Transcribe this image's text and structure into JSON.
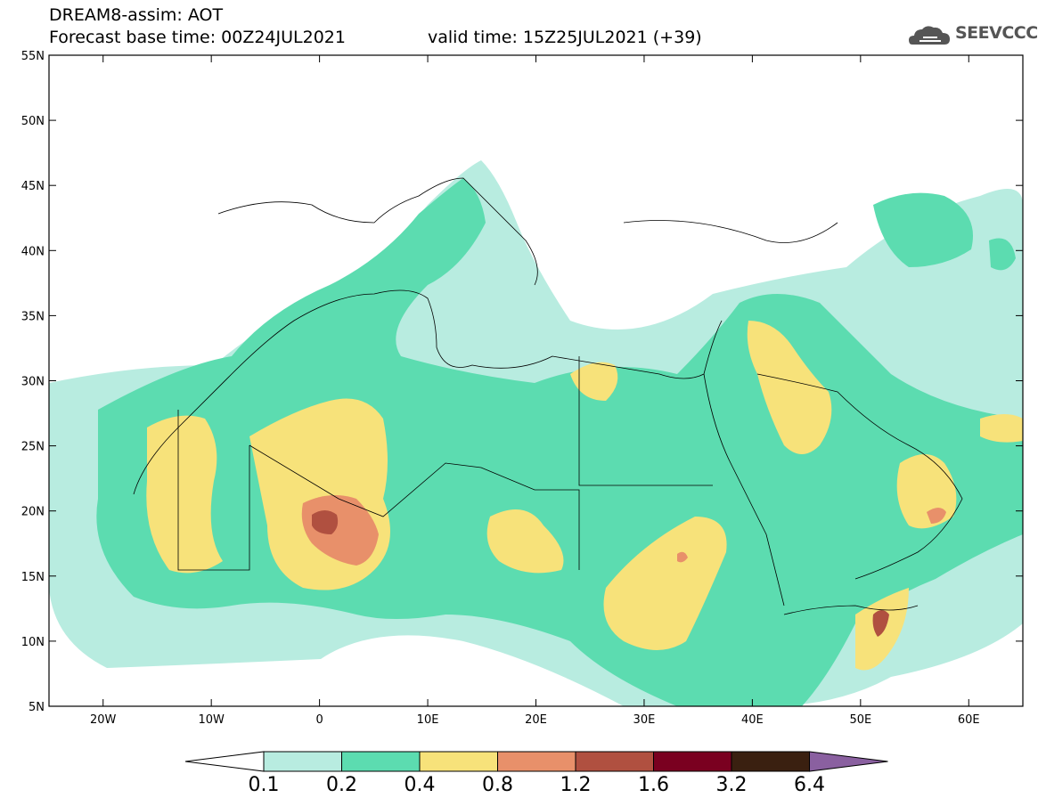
{
  "header": {
    "line1": "DREAM8-assim: AOT",
    "line2": "Forecast base time: 00Z24JUL2021",
    "line3": "valid time: 15Z25JUL2021 (+39)"
  },
  "logo": {
    "text": "SEEVCCC",
    "icon": "cloud-icon",
    "color": "#555555"
  },
  "map": {
    "lat_ticks": [
      "55N",
      "50N",
      "45N",
      "40N",
      "35N",
      "30N",
      "25N",
      "20N",
      "15N",
      "10N",
      "5N"
    ],
    "lon_ticks": [
      "20W",
      "10W",
      "0",
      "10E",
      "20E",
      "30E",
      "40E",
      "50E",
      "60E"
    ],
    "lat_range": [
      5,
      55
    ],
    "lon_range": [
      -25,
      65
    ]
  },
  "colorbar": {
    "labels": [
      "0.1",
      "0.2",
      "0.4",
      "0.8",
      "1.2",
      "1.6",
      "3.2",
      "6.4"
    ],
    "colors": [
      "#ffffff",
      "#b8ece0",
      "#5cdcb0",
      "#f7e27a",
      "#e8906a",
      "#b05040",
      "#7a0020",
      "#3a2010",
      "#8a60a0"
    ]
  }
}
